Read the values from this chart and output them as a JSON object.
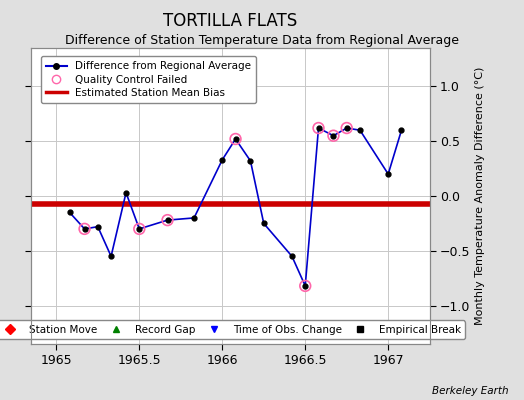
{
  "title": "TORTILLA FLATS",
  "subtitle": "Difference of Station Temperature Data from Regional Average",
  "ylabel": "Monthly Temperature Anomaly Difference (°C)",
  "xlabel_bottom": "Berkeley Earth",
  "xlim": [
    1964.85,
    1967.25
  ],
  "ylim": [
    -1.35,
    1.35
  ],
  "yticks": [
    -1,
    -0.5,
    0,
    0.5,
    1
  ],
  "xticks": [
    1965,
    1965.5,
    1966,
    1966.5,
    1967
  ],
  "bias_value": -0.07,
  "line_color": "#0000cc",
  "marker_color": "#000000",
  "line_data_x": [
    1965.08,
    1965.17,
    1965.25,
    1965.33,
    1965.42,
    1965.5,
    1965.67,
    1965.83,
    1966.0,
    1966.08,
    1966.17,
    1966.25,
    1966.42,
    1966.5,
    1966.58,
    1966.67,
    1966.75,
    1966.83,
    1967.0,
    1967.08
  ],
  "line_data_y": [
    -0.15,
    -0.3,
    -0.28,
    -0.55,
    0.03,
    -0.3,
    -0.22,
    -0.2,
    0.33,
    0.52,
    0.32,
    -0.25,
    -0.55,
    -0.82,
    0.62,
    0.55,
    0.62,
    0.6,
    0.2,
    0.6
  ],
  "qc_failed_x": [
    1965.17,
    1965.5,
    1965.67,
    1966.08,
    1966.5,
    1966.58,
    1966.67,
    1966.75
  ],
  "qc_failed_y": [
    -0.3,
    -0.3,
    -0.22,
    0.52,
    -0.82,
    0.62,
    0.55,
    0.62
  ],
  "bg_color": "#e0e0e0",
  "plot_bg_color": "#ffffff",
  "grid_color": "#c8c8c8",
  "red_line_color": "#cc0000",
  "qc_color": "#ff66aa",
  "title_fontsize": 12,
  "subtitle_fontsize": 9,
  "tick_fontsize": 9,
  "ylabel_fontsize": 8
}
